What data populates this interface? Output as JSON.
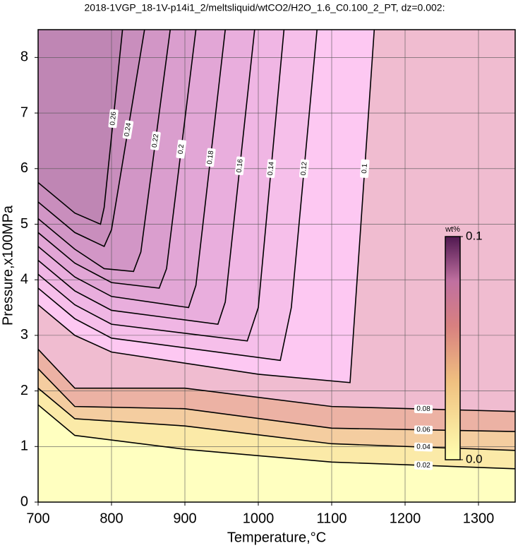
{
  "chart_data": {
    "type": "contour",
    "title": "2018-1VGP_18-1V-p14i1_2/meltsliquid/wtCO2/H2O_1.6_C0.100_2_PT, dz=0.002:",
    "x_label": "Temperature,°C",
    "y_label": "Pressure,x100MPa",
    "xlim": [
      700,
      1350
    ],
    "ylim": [
      0,
      8.5
    ],
    "xticks": [
      700,
      800,
      900,
      1000,
      1100,
      1200,
      1300
    ],
    "yticks": [
      0,
      1,
      2,
      3,
      4,
      5,
      6,
      7,
      8
    ],
    "grid": true,
    "background_color": "#ffffc0",
    "series": [
      {
        "name": "0.02",
        "color": "#fbeaa8",
        "x": [
          700,
          750,
          900,
          1100,
          1350
        ],
        "y": [
          1.75,
          1.2,
          0.95,
          0.72,
          0.6
        ]
      },
      {
        "name": "0.04",
        "color": "#f4cda0",
        "x": [
          700,
          750,
          900,
          1100,
          1350
        ],
        "y": [
          2.05,
          1.5,
          1.37,
          1.05,
          0.93
        ]
      },
      {
        "name": "0.06",
        "color": "#ecb2a4",
        "x": [
          700,
          750,
          900,
          1100,
          1350
        ],
        "y": [
          2.4,
          1.72,
          1.68,
          1.33,
          1.27
        ]
      },
      {
        "name": "0.08",
        "color": "#f0bcd0",
        "x": [
          700,
          750,
          900,
          1100,
          1350
        ],
        "y": [
          2.75,
          2.05,
          2.05,
          1.72,
          1.63
        ]
      },
      {
        "name": "0.1",
        "color": "#fdc8f2",
        "x": [
          700,
          750,
          800,
          1000,
          1125,
          1132,
          1158
        ],
        "y": [
          3.55,
          3.0,
          2.7,
          2.3,
          2.15,
          3.5,
          8.5
        ]
      },
      {
        "name": "0.12",
        "color": "#f6bfea",
        "x": [
          700,
          750,
          800,
          1030,
          1045,
          1080
        ],
        "y": [
          3.85,
          3.3,
          2.95,
          2.55,
          3.5,
          8.5
        ]
      },
      {
        "name": "0.14",
        "color": "#f0b6e4",
        "x": [
          700,
          750,
          800,
          985,
          1000,
          1035
        ],
        "y": [
          4.1,
          3.55,
          3.2,
          2.9,
          3.5,
          8.5
        ]
      },
      {
        "name": "0.16",
        "color": "#e9aedd",
        "x": [
          700,
          750,
          800,
          945,
          955,
          995
        ],
        "y": [
          4.35,
          3.8,
          3.45,
          3.2,
          3.6,
          8.5
        ]
      },
      {
        "name": "0.18",
        "color": "#e2a6d6",
        "x": [
          700,
          750,
          800,
          905,
          915,
          955
        ],
        "y": [
          4.6,
          4.05,
          3.7,
          3.5,
          3.9,
          8.5
        ]
      },
      {
        "name": "0.2",
        "color": "#da9ece",
        "x": [
          700,
          750,
          800,
          865,
          875,
          915
        ],
        "y": [
          4.85,
          4.3,
          3.95,
          3.85,
          4.2,
          8.5
        ]
      },
      {
        "name": "0.22",
        "color": "#d296c6",
        "x": [
          700,
          750,
          790,
          830,
          840,
          880
        ],
        "y": [
          5.1,
          4.55,
          4.2,
          4.15,
          4.5,
          8.5
        ]
      },
      {
        "name": "0.24",
        "color": "#c98ebd",
        "x": [
          700,
          750,
          790,
          800,
          845
        ],
        "y": [
          5.4,
          4.85,
          4.6,
          4.9,
          8.5
        ]
      },
      {
        "name": "0.26",
        "color": "#bf86b4",
        "x": [
          700,
          750,
          785,
          790,
          815
        ],
        "y": [
          5.75,
          5.2,
          5.0,
          5.3,
          8.5
        ]
      }
    ],
    "colorbar": {
      "label": "wt%",
      "lim": [
        0,
        0.1
      ],
      "ticks": [
        {
          "value": 0,
          "label": "0.0"
        },
        0.1
      ]
    }
  }
}
